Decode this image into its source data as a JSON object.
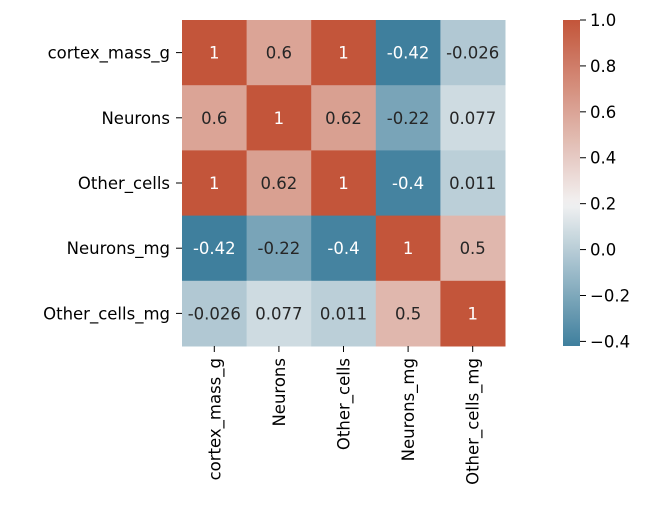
{
  "chart_data": {
    "type": "heatmap",
    "title": "",
    "xlabel": "",
    "ylabel": "",
    "rows": [
      "cortex_mass_g",
      "Neurons",
      "Other_cells",
      "Neurons_mg",
      "Other_cells_mg"
    ],
    "columns": [
      "cortex_mass_g",
      "Neurons",
      "Other_cells",
      "Neurons_mg",
      "Other_cells_mg"
    ],
    "values": [
      [
        1,
        0.6,
        1,
        -0.42,
        -0.026
      ],
      [
        0.6,
        1,
        0.62,
        -0.22,
        0.077
      ],
      [
        1,
        0.62,
        1,
        -0.4,
        0.011
      ],
      [
        -0.42,
        -0.22,
        -0.4,
        1,
        0.5
      ],
      [
        -0.026,
        0.077,
        0.011,
        0.5,
        1
      ]
    ],
    "cell_labels": [
      [
        "1",
        "0.6",
        "1",
        "-0.42",
        "-0.026"
      ],
      [
        "0.6",
        "1",
        "0.62",
        "-0.22",
        "0.077"
      ],
      [
        "1",
        "0.62",
        "1",
        "-0.4",
        "0.011"
      ],
      [
        "-0.42",
        "-0.22",
        "-0.4",
        "1",
        "0.5"
      ],
      [
        "-0.026",
        "0.077",
        "0.011",
        "0.5",
        "1"
      ]
    ],
    "colorbar": {
      "vmin": -0.42,
      "vmax": 1.0,
      "ticks": [
        1.0,
        0.8,
        0.6,
        0.4,
        0.2,
        0.0,
        -0.2,
        -0.4
      ],
      "tick_labels": [
        "1.0",
        "0.8",
        "0.6",
        "0.4",
        "0.2",
        "0.0",
        "−0.2",
        "−0.4"
      ],
      "low_color": "#3f7f9d",
      "mid_color": "#f2f2f2",
      "high_color": "#c3553a"
    },
    "legend": "colorbar-right",
    "grid": false
  }
}
